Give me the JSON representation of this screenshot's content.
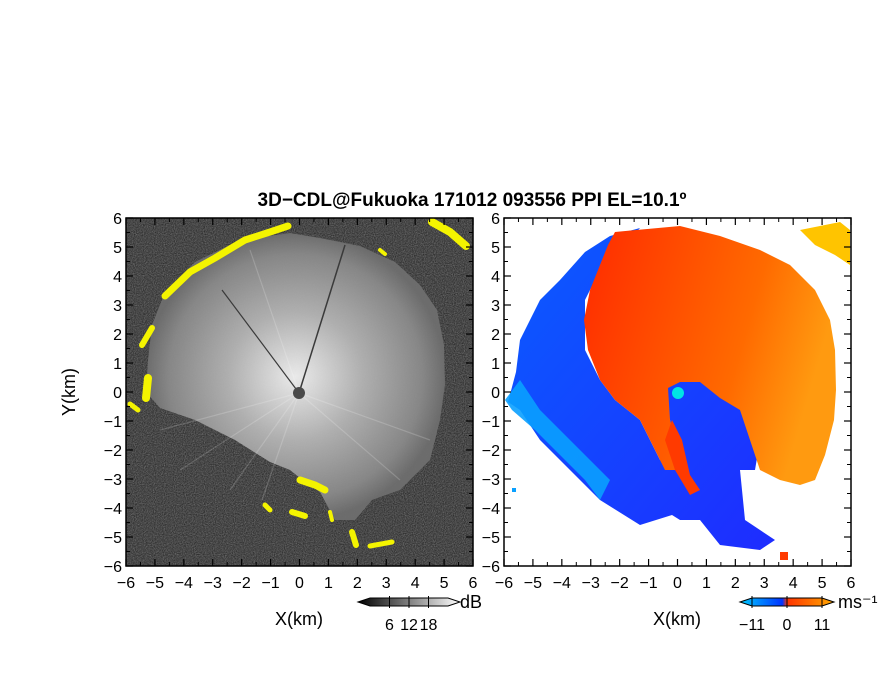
{
  "chart_data": {
    "title": "3D−CDL@Fukuoka 171012 093556 PPI EL=10.1º",
    "type": "heatmap",
    "panels": [
      {
        "name": "backscatter",
        "xlabel": "X(km)",
        "ylabel": "Y(km)",
        "xlim": [
          -6,
          6
        ],
        "ylim": [
          -6,
          6
        ],
        "xticks": [
          "−6",
          "−5",
          "−4",
          "−3",
          "−2",
          "−1",
          "0",
          "1",
          "2",
          "3",
          "4",
          "5",
          "6"
        ],
        "yticks": [
          "6",
          "5",
          "4",
          "3",
          "2",
          "1",
          "0",
          "−1",
          "−2",
          "−3",
          "−4",
          "−5",
          "−6"
        ],
        "colorbar": {
          "unit": "dB",
          "range": [
            0,
            24
          ],
          "tick_labels": [
            "6",
            "12",
            "18"
          ],
          "colors": [
            "#000000",
            "#ffffff"
          ]
        },
        "palette": {
          "dark": "#1c1c1c",
          "light": "#ffffff",
          "strong": "#ffff00"
        }
      },
      {
        "name": "doppler_velocity",
        "xlim": [
          -6,
          6
        ],
        "ylim": [
          -6,
          6
        ],
        "xlabel": "X(km)",
        "xticks": [
          "−6",
          "−5",
          "−4",
          "−3",
          "−2",
          "−1",
          "0",
          "1",
          "2",
          "3",
          "4",
          "5",
          "6"
        ],
        "yticks": [
          "6",
          "5",
          "4",
          "3",
          "2",
          "1",
          "0",
          "−1",
          "−2",
          "−3",
          "−4",
          "−5",
          "−6"
        ],
        "colorbar": {
          "unit": "ms⁻¹",
          "range": [
            -11,
            11
          ],
          "tick_labels": [
            "−11",
            "0",
            "11"
          ],
          "colors": [
            "#00ccff",
            "#0033ff",
            "#ff3300",
            "#ffaa00"
          ]
        },
        "palette": {
          "toward": "#1e46ff",
          "toward_far": "#00aaff",
          "away": "#ff3a00",
          "away_far": "#ff9900",
          "center": "#00e5e5"
        }
      }
    ]
  }
}
